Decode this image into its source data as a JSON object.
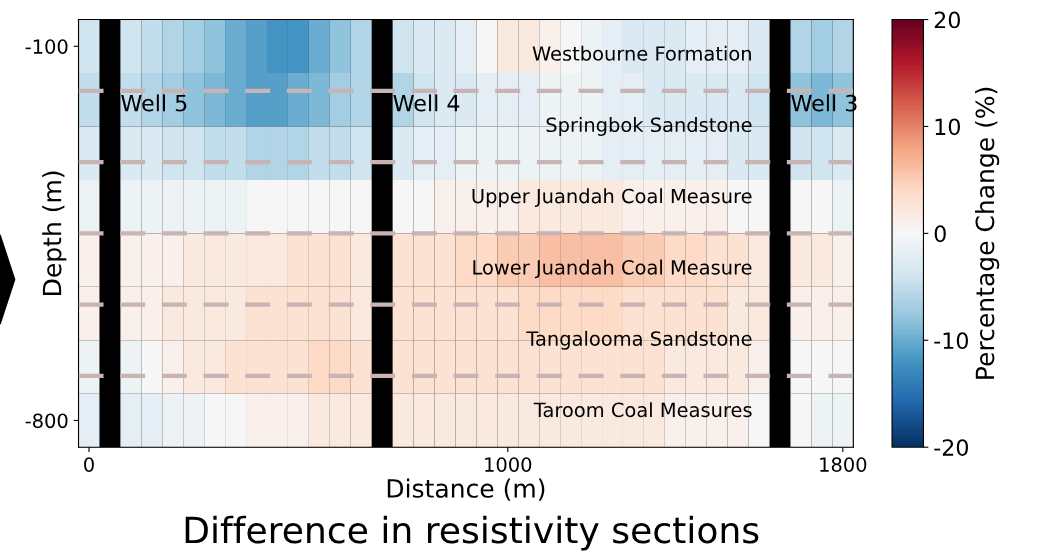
{
  "chart_data": {
    "type": "heatmap",
    "title": "Difference in resistivity sections",
    "xlabel": "Distance (m)",
    "ylabel": "Depth (m)",
    "clabel": "Percentage Change (%)",
    "categories": [
      "0",
      null,
      null,
      null,
      null,
      null,
      null,
      null,
      null,
      null,
      null,
      null,
      null,
      null,
      null,
      null,
      null,
      null,
      null,
      null,
      "1000",
      null,
      null,
      null,
      null,
      null,
      null,
      null,
      null,
      null,
      null,
      null,
      null,
      null,
      null,
      null,
      "1800"
    ],
    "y_categories": [
      "-100",
      null,
      null,
      null,
      null,
      null,
      null,
      "-800"
    ],
    "cells": [
      [
        -4,
        null,
        -4,
        -5,
        -6,
        -7,
        -8,
        -10,
        -11,
        -12,
        -12,
        -10,
        -8,
        -6,
        null,
        -4,
        -3,
        -3,
        -2,
        0,
        2,
        2,
        1,
        0,
        -1,
        -2,
        -3,
        -3,
        -3,
        -2,
        -2,
        -2,
        -3,
        null,
        -6,
        -7,
        -6
      ],
      [
        -5,
        null,
        -5,
        -6,
        -7,
        -8,
        -9,
        -10,
        -11,
        -11,
        -10,
        -9,
        -7,
        -6,
        null,
        -6,
        -4,
        -3,
        -3,
        -2,
        -2,
        -2,
        -1,
        -1,
        -1,
        -2,
        -2,
        -3,
        -3,
        -3,
        -3,
        -3,
        -4,
        null,
        -8,
        -9,
        -8
      ],
      [
        -3,
        null,
        -3,
        -3,
        -4,
        -4,
        -5,
        -5,
        -6,
        -6,
        -6,
        -5,
        -5,
        -4,
        null,
        -3,
        -2,
        -2,
        -1,
        -1,
        -1,
        -1,
        -1,
        -1,
        -1,
        -2,
        -2,
        -2,
        -2,
        -2,
        -2,
        -3,
        -3,
        null,
        -4,
        -4,
        -3
      ],
      [
        -1,
        null,
        -1,
        -1,
        -1,
        -1,
        -1,
        -1,
        0,
        0,
        0,
        0,
        0,
        0,
        null,
        0,
        0,
        1,
        1,
        1,
        1,
        2,
        2,
        2,
        2,
        2,
        1,
        1,
        1,
        1,
        1,
        0,
        0,
        null,
        0,
        0,
        -1
      ],
      [
        1,
        null,
        1,
        1,
        1,
        2,
        2,
        2,
        2,
        2,
        3,
        3,
        3,
        2,
        null,
        3,
        3,
        3,
        4,
        4,
        5,
        5,
        6,
        6,
        6,
        6,
        5,
        5,
        4,
        4,
        3,
        3,
        2,
        null,
        2,
        2,
        1
      ],
      [
        1,
        null,
        1,
        1,
        2,
        2,
        2,
        2,
        3,
        3,
        3,
        3,
        3,
        2,
        null,
        3,
        3,
        3,
        3,
        3,
        3,
        4,
        4,
        4,
        4,
        4,
        3,
        3,
        3,
        3,
        3,
        2,
        2,
        null,
        1,
        1,
        1
      ],
      [
        -1,
        null,
        -1,
        0,
        1,
        2,
        2,
        3,
        3,
        3,
        3,
        4,
        4,
        3,
        null,
        3,
        3,
        3,
        3,
        3,
        3,
        3,
        3,
        3,
        3,
        3,
        3,
        3,
        2,
        2,
        2,
        2,
        1,
        null,
        0,
        0,
        0
      ],
      [
        -2,
        null,
        -2,
        -2,
        -1,
        -1,
        0,
        0,
        1,
        1,
        1,
        2,
        2,
        2,
        null,
        2,
        2,
        2,
        2,
        2,
        2,
        2,
        2,
        2,
        2,
        2,
        2,
        2,
        1,
        1,
        1,
        1,
        0,
        null,
        0,
        -1,
        -1
      ]
    ],
    "clim": [
      -20,
      20
    ],
    "cticks": [
      -20,
      -10,
      0,
      10,
      20
    ],
    "annotations": [
      "Westbourne Formation",
      "Springbok Sandstone",
      "Upper Juandah Coal Measure",
      "Lower Juandah Coal Measure",
      "Tangalooma Sandstone",
      "Taroom Coal Measures",
      "Well 5",
      "Well 4",
      "Well 3"
    ]
  }
}
